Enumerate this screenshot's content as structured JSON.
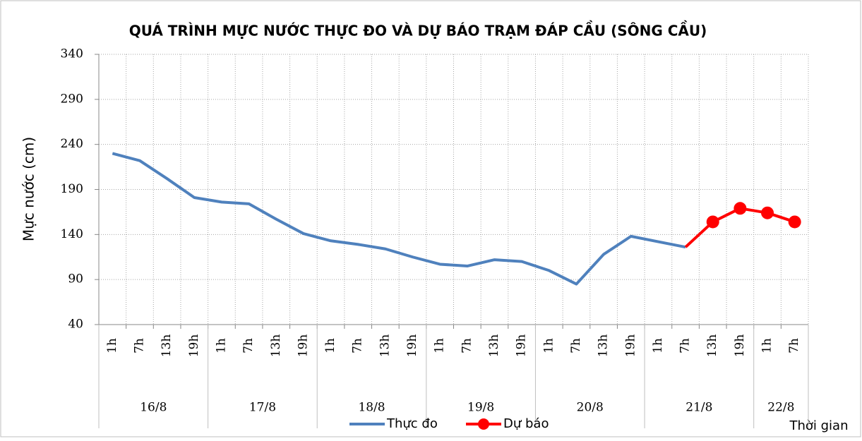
{
  "chart_data": {
    "type": "line",
    "title": "QUÁ TRÌNH MỰC NƯỚC THỰC ĐO VÀ DỰ BÁO TRẠM ĐÁP CẦU (SÔNG CẦU)",
    "y_label": "Mực nước (cm)",
    "x_label": "Thời gian",
    "categories": [
      "1h",
      "7h",
      "13h",
      "19h",
      "1h",
      "7h",
      "13h",
      "19h",
      "1h",
      "7h",
      "13h",
      "19h",
      "1h",
      "7h",
      "13h",
      "19h",
      "1h",
      "7h",
      "13h",
      "19h",
      "1h",
      "7h",
      "13h",
      "19h",
      "1h",
      "7h"
    ],
    "date_groups": [
      {
        "label": "16/8",
        "span": 4
      },
      {
        "label": "17/8",
        "span": 4
      },
      {
        "label": "18/8",
        "span": 4
      },
      {
        "label": "19/8",
        "span": 4
      },
      {
        "label": "20/8",
        "span": 4
      },
      {
        "label": "21/8",
        "span": 4
      },
      {
        "label": "22/8",
        "span": 2
      }
    ],
    "series": [
      {
        "name": "Thực đo",
        "color": "#4f81bd",
        "marker": false,
        "values": [
          230,
          222,
          202,
          181,
          176,
          174,
          157,
          141,
          133,
          129,
          124,
          115,
          107,
          105,
          112,
          110,
          100,
          85,
          118,
          138,
          132,
          126,
          null,
          null,
          null,
          null
        ]
      },
      {
        "name": "Dự báo",
        "color": "#ff0000",
        "marker": true,
        "values": [
          null,
          null,
          null,
          null,
          null,
          null,
          null,
          null,
          null,
          null,
          null,
          null,
          null,
          null,
          null,
          null,
          null,
          null,
          null,
          null,
          null,
          126,
          154,
          169,
          164,
          154
        ]
      }
    ],
    "ylim": [
      40,
      340
    ],
    "yticks": [
      40,
      90,
      140,
      190,
      240,
      290,
      340
    ],
    "grid": true,
    "legend": "bottom"
  }
}
